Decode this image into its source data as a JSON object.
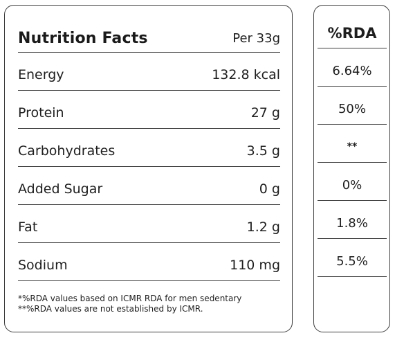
{
  "facts": {
    "title": "Nutrition Facts",
    "serving": "Per 33g",
    "rows": [
      {
        "label": "Energy",
        "value": "132.8 kcal"
      },
      {
        "label": "Protein",
        "value": "27 g"
      },
      {
        "label": "Carbohydrates",
        "value": "3.5 g"
      },
      {
        "label": "Added Sugar",
        "value": "0 g"
      },
      {
        "label": "Fat",
        "value": "1.2 g"
      },
      {
        "label": "Sodium",
        "value": "110 mg"
      }
    ],
    "notes": [
      "*%RDA values based on ICMR RDA for men sedentary",
      "**%RDA values are not established by ICMR."
    ]
  },
  "rda": {
    "title": "%RDA",
    "values": [
      "6.64%",
      "50%",
      "**",
      "0%",
      "1.8%",
      "5.5%"
    ]
  }
}
